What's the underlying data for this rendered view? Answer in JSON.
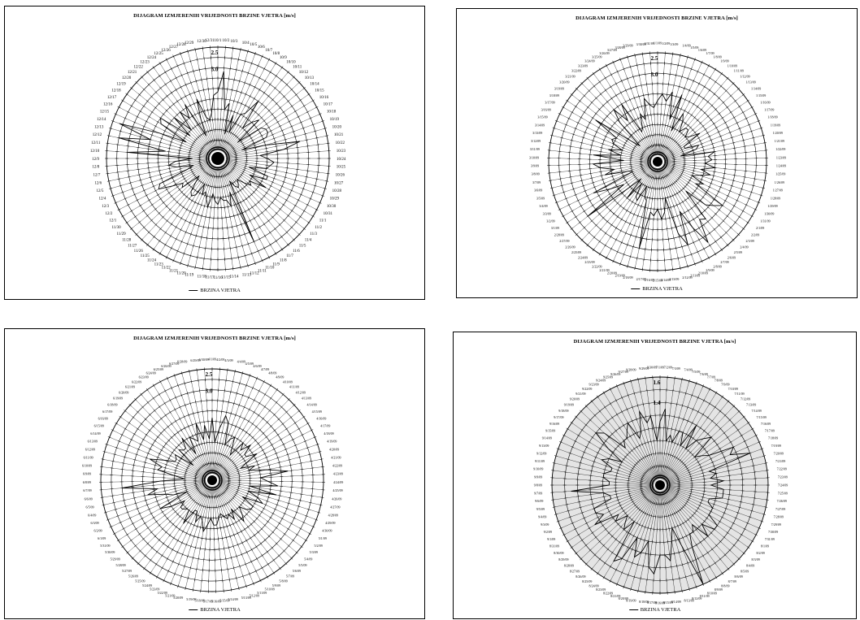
{
  "chart_data": [
    {
      "type": "radar",
      "title": "DIJAGRAM IZMJERENIH VRIJEDNOSTI BRZINE VJETRA [m/s]",
      "series": [
        {
          "name": "BRZINA VJETRA",
          "color": "#000000",
          "values": [
            1.7,
            2.3,
            1.2,
            1.4,
            0.5,
            1.1,
            0.6,
            1.2,
            1.3,
            1.8,
            0.9,
            1.2,
            1.4,
            0.5,
            1.3,
            1.4,
            1.4,
            1.3,
            0.5,
            1.2,
            2.2,
            1.7,
            1.0,
            1.2,
            1.4,
            1.3,
            1.2,
            0.7,
            1.3,
            1.3,
            0.8,
            1.4,
            0.9,
            1.0,
            0.8,
            0.6,
            0.7,
            0.8,
            0.7,
            0.5,
            2.4,
            0.8,
            1.2,
            1.0,
            1.0,
            0.9,
            1.1,
            1.0,
            0.8,
            1.2,
            1.0,
            0.8,
            0.9,
            0.6,
            1.0,
            1.1,
            1.0,
            0.7,
            0.5,
            1.1,
            1.0,
            1.3,
            1.7,
            1.6,
            0.7,
            0.5,
            1.0,
            1.2,
            1.0,
            0.5,
            2.4,
            1.3,
            2.7,
            1.8,
            2.8,
            1.6,
            0.8,
            1.7,
            1.8,
            0.8,
            1.5,
            0.9,
            1.5,
            1.2,
            1.6,
            0.5,
            1.0,
            1.6,
            1.0,
            0.9,
            1.1,
            1.6
          ]
        }
      ],
      "categories": [
        "10/1",
        "10/2",
        "10/3",
        "10/4",
        "10/5",
        "10/6",
        "10/7",
        "10/8",
        "10/9",
        "10/10",
        "10/11",
        "10/12",
        "10/13",
        "10/14",
        "10/15",
        "10/16",
        "10/17",
        "10/18",
        "10/19",
        "10/20",
        "10/21",
        "10/22",
        "10/23",
        "10/24",
        "10/25",
        "10/26",
        "10/27",
        "10/28",
        "10/29",
        "10/30",
        "10/31",
        "11/1",
        "11/2",
        "11/3",
        "11/4",
        "11/5",
        "11/6",
        "11/7",
        "11/8",
        "11/9",
        "11/10",
        "11/11",
        "11/12",
        "11/13",
        "11/14",
        "11/15",
        "11/16",
        "11/17",
        "11/18",
        "11/19",
        "11/20",
        "11/21",
        "11/22",
        "11/23",
        "11/24",
        "11/25",
        "11/26",
        "11/27",
        "11/28",
        "11/29",
        "11/30",
        "12/1",
        "12/2",
        "12/3",
        "12/4",
        "12/5",
        "12/6",
        "12/7",
        "12/8",
        "12/9",
        "12/10",
        "12/11",
        "12/12",
        "12/13",
        "12/14",
        "12/15",
        "12/16",
        "12/17",
        "12/18",
        "12/19",
        "12/20",
        "12/21",
        "12/22",
        "12/23",
        "12/24",
        "12/25",
        "12/26",
        "12/27",
        "12/28",
        "12/29",
        "12/30",
        "12/31"
      ],
      "radial_axis_labels": [
        "2.5",
        "3.0"
      ],
      "rmax": 3.0,
      "rings": 10,
      "legend_text": "BRZINA VJETRA",
      "legend_position": "bottom"
    },
    {
      "type": "radar",
      "title": "DIJAGRAM IZMJERENIH VRIJEDNOSTI BRZINE VJETRA [m/s]",
      "series": [
        {
          "name": "BRZINA VJETRA",
          "color": "#000000",
          "values": [
            1.6,
            1.8,
            1.6,
            1.9,
            1.1,
            1.9,
            0.8,
            1.4,
            1.2,
            0.9,
            1.1,
            1.1,
            0.9,
            1.0,
            1.3,
            0.7,
            0.7,
            1.1,
            1.0,
            0.5,
            1.5,
            1.3,
            1.4,
            1.2,
            1.5,
            1.1,
            1.4,
            1.1,
            0.9,
            1.3,
            1.1,
            2.1,
            1.9,
            1.7,
            1.0,
            2.0,
            1.9,
            2.6,
            2.0,
            1.4,
            2.4,
            2.0,
            0.9,
            1.3,
            1.5,
            1.2,
            1.4,
            1.3,
            2.4,
            1.0,
            0.9,
            0.6,
            1.1,
            1.0,
            0.6,
            1.2,
            0.5,
            1.0,
            2.4,
            1.0,
            1.4,
            1.9,
            0.6,
            0.7,
            1.4,
            1.1,
            1.5,
            1.7,
            0.8,
            1.7,
            0.9,
            1.3,
            0.9,
            1.2,
            1.3,
            1.2,
            2.0,
            0.8,
            0.5,
            1.4,
            1.8,
            1.3,
            1.8,
            0.8,
            0.9,
            1.3,
            1.1,
            1.7,
            1.5,
            1.4
          ]
        }
      ],
      "categories": [
        "1/1/09",
        "1/2/09",
        "1/3/09",
        "1/4/09",
        "1/5/09",
        "1/6/09",
        "1/7/09",
        "1/8/09",
        "1/9/09",
        "1/10/09",
        "1/11/09",
        "1/12/09",
        "1/13/09",
        "1/14/09",
        "1/15/09",
        "1/16/09",
        "1/17/09",
        "1/18/09",
        "1/19/09",
        "1/20/09",
        "1/21/09",
        "1/22/09",
        "1/23/09",
        "1/24/09",
        "1/25/09",
        "1/26/09",
        "1/27/09",
        "1/28/09",
        "1/29/09",
        "1/30/09",
        "1/31/09",
        "2/1/09",
        "2/2/09",
        "2/3/09",
        "2/4/09",
        "2/5/09",
        "2/6/09",
        "2/7/09",
        "2/8/09",
        "2/9/09",
        "2/10/09",
        "2/11/09",
        "2/12/09",
        "2/13/09",
        "2/14/09",
        "2/15/09",
        "2/16/09",
        "2/17/09",
        "2/18/09",
        "2/19/09",
        "2/20/09",
        "2/21/09",
        "2/22/09",
        "2/23/09",
        "2/24/09",
        "2/25/09",
        "2/26/09",
        "2/27/09",
        "2/28/09",
        "3/1/09",
        "3/2/09",
        "3/3/09",
        "3/4/09",
        "3/5/09",
        "3/6/09",
        "3/7/09",
        "3/8/09",
        "3/9/09",
        "3/10/09",
        "3/11/09",
        "3/12/09",
        "3/13/09",
        "3/14/09",
        "3/15/09",
        "3/16/09",
        "3/17/09",
        "3/18/09",
        "3/19/09",
        "3/20/09",
        "3/21/09",
        "3/22/09",
        "3/23/09",
        "3/24/09",
        "3/25/09",
        "3/26/09",
        "3/27/09",
        "3/28/09",
        "3/29/09",
        "3/30/09",
        "3/31/09"
      ],
      "radial_axis_labels": [
        "2.5",
        "3.0"
      ],
      "rmax": 3.0,
      "rings": 10,
      "legend_text": "BRZINA VJETRA",
      "legend_position": "bottom"
    },
    {
      "type": "radar",
      "title": "DIJAGRAM IZMJERENIH VRIJEDNOSTI BRZINE VJETRA [m/s]",
      "series": [
        {
          "name": "BRZINA VJETRA",
          "color": "#000000",
          "values": [
            1.6,
            0.9,
            1.3,
            1.7,
            1.5,
            0.9,
            1.1,
            1.2,
            0.9,
            0.7,
            1.2,
            1.0,
            1.3,
            1.0,
            1.0,
            1.3,
            0.9,
            0.7,
            1.1,
            0.9,
            1.4,
            2.0,
            1.2,
            1.4,
            1.7,
            0.9,
            1.7,
            0.9,
            1.2,
            1.4,
            0.8,
            1.2,
            1.2,
            1.1,
            0.9,
            1.1,
            1.3,
            0.8,
            1.1,
            0.9,
            1.0,
            0.9,
            0.8,
            0.9,
            1.1,
            1.1,
            0.9,
            1.1,
            1.3,
            1.0,
            0.9,
            1.1,
            0.8,
            0.8,
            1.3,
            0.9,
            0.9,
            1.0,
            1.0,
            0.8,
            1.2,
            1.5,
            0.6,
            1.0,
            1.2,
            1.7,
            1.4,
            2.4,
            1.3,
            0.6,
            0.9,
            1.4,
            1.3,
            1.7,
            1.3,
            1.0,
            1.0,
            1.1,
            0.5,
            1.1,
            1.0,
            1.0,
            1.3,
            0.7,
            1.2,
            1.1,
            1.0,
            1.5,
            1.0,
            1.4,
            1.0
          ]
        }
      ],
      "categories": [
        "4/1/09",
        "4/2/09",
        "4/3/09",
        "4/4/09",
        "4/5/09",
        "4/6/09",
        "4/7/09",
        "4/8/09",
        "4/9/09",
        "4/10/09",
        "4/11/09",
        "4/12/09",
        "4/13/09",
        "4/14/09",
        "4/15/09",
        "4/16/09",
        "4/17/09",
        "4/18/09",
        "4/19/09",
        "4/20/09",
        "4/21/09",
        "4/22/09",
        "4/23/09",
        "4/24/09",
        "4/25/09",
        "4/26/09",
        "4/27/09",
        "4/28/09",
        "4/29/09",
        "4/30/09",
        "5/1/09",
        "5/2/09",
        "5/3/09",
        "5/4/09",
        "5/5/09",
        "5/6/09",
        "5/7/09",
        "5/8/09",
        "5/9/09",
        "5/10/09",
        "5/11/09",
        "5/12/09",
        "5/13/09",
        "5/14/09",
        "5/15/09",
        "5/16/09",
        "5/17/09",
        "5/18/09",
        "5/19/09",
        "5/20/09",
        "5/21/09",
        "5/22/09",
        "5/23/09",
        "5/24/09",
        "5/25/09",
        "5/26/09",
        "5/27/09",
        "5/28/09",
        "5/29/09",
        "5/30/09",
        "5/31/09",
        "6/1/09",
        "6/2/09",
        "6/3/09",
        "6/4/09",
        "6/5/09",
        "6/6/09",
        "6/7/09",
        "6/8/09",
        "6/9/09",
        "6/10/09",
        "6/11/09",
        "6/12/09",
        "6/13/09",
        "6/14/09",
        "6/15/09",
        "6/16/09",
        "6/17/09",
        "6/18/09",
        "6/19/09",
        "6/20/09",
        "6/21/09",
        "6/22/09",
        "6/23/09",
        "6/24/09",
        "6/25/09",
        "6/26/09",
        "6/27/09",
        "6/28/09",
        "6/29/09",
        "6/30/09"
      ],
      "radial_axis_labels": [
        "2.5",
        "3.0"
      ],
      "rmax": 3.0,
      "rings": 10,
      "legend_text": "BRZINA VJETRA",
      "legend_position": "bottom"
    },
    {
      "type": "radar",
      "title": "DIJAGRAM IZMJERENIH VRIJEDNOSTI BRZINE VJETRA [m/s]",
      "series": [
        {
          "name": "BRZINA VJETRA",
          "color": "#000000",
          "values": [
            0.9,
            1.1,
            0.6,
            0.7,
            0.6,
            0.8,
            0.8,
            0.6,
            1.0,
            0.6,
            0.8,
            0.9,
            1.0,
            0.6,
            0.7,
            0.8,
            1.2,
            1.1,
            1.4,
            0.7,
            0.8,
            0.7,
            0.9,
            0.7,
            0.9,
            0.9,
            0.9,
            0.7,
            0.7,
            0.8,
            0.8,
            0.8,
            1.0,
            1.0,
            0.8,
            1.0,
            0.7,
            0.8,
            0.8,
            1.0,
            1.6,
            0.9,
            0.6,
            0.8,
            1.1,
            1.0,
            1.0,
            1.3,
            1.2,
            0.8,
            1.0,
            1.1,
            0.8,
            1.2,
            1.3,
            0.6,
            0.8,
            0.7,
            0.6,
            0.8,
            0.7,
            1.1,
            0.9,
            1.0,
            1.0,
            0.7,
            0.7,
            0.8,
            1.3,
            0.7,
            0.7,
            0.8,
            0.8,
            0.7,
            0.7,
            0.9,
            0.8,
            0.6,
            0.9,
            1.2,
            1.1,
            0.7,
            0.8,
            0.8,
            0.9,
            1.0,
            0.7,
            0.8,
            1.1,
            0.9,
            1.0,
            0.6
          ]
        }
      ],
      "categories": [
        "7/1/09",
        "7/2/09",
        "7/3/09",
        "7/4/09",
        "7/5/09",
        "7/6/09",
        "7/7/09",
        "7/8/09",
        "7/9/09",
        "7/10/09",
        "7/11/09",
        "7/12/09",
        "7/13/09",
        "7/14/09",
        "7/15/09",
        "7/16/09",
        "7/17/09",
        "7/18/09",
        "7/19/09",
        "7/20/09",
        "7/21/09",
        "7/22/09",
        "7/23/09",
        "7/24/09",
        "7/25/09",
        "7/26/09",
        "7/27/09",
        "7/28/09",
        "7/29/09",
        "7/30/09",
        "7/31/09",
        "8/1/09",
        "8/2/09",
        "8/3/09",
        "8/4/09",
        "8/5/09",
        "8/6/09",
        "8/7/09",
        "8/8/09",
        "8/9/09",
        "8/10/09",
        "8/11/09",
        "8/12/09",
        "8/13/09",
        "8/14/09",
        "8/15/09",
        "8/16/09",
        "8/17/09",
        "8/18/09",
        "8/19/09",
        "8/20/09",
        "8/21/09",
        "8/22/09",
        "8/23/09",
        "8/24/09",
        "8/25/09",
        "8/26/09",
        "8/27/09",
        "8/28/09",
        "8/29/09",
        "8/30/09",
        "8/31/09",
        "9/1/09",
        "9/2/09",
        "9/3/09",
        "9/4/09",
        "9/5/09",
        "9/6/09",
        "9/7/09",
        "9/8/09",
        "9/9/09",
        "9/10/09",
        "9/11/09",
        "9/12/09",
        "9/13/09",
        "9/14/09",
        "9/15/09",
        "9/16/09",
        "9/17/09",
        "9/18/09",
        "9/19/09",
        "9/20/09",
        "9/21/09",
        "9/22/09",
        "9/23/09",
        "9/24/09",
        "9/25/09",
        "9/26/09",
        "9/27/09",
        "9/28/09",
        "9/29/09",
        "9/30/09"
      ],
      "radial_axis_labels": [
        "1.6",
        "1.4"
      ],
      "rmax": 1.6,
      "rings": 8,
      "legend_text": "BRZINA VJETRA",
      "legend_position": "bottom"
    }
  ]
}
